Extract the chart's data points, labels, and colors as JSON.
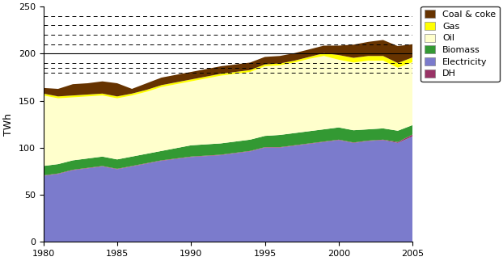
{
  "years": [
    1980,
    1981,
    1982,
    1983,
    1984,
    1985,
    1986,
    1987,
    1988,
    1989,
    1990,
    1991,
    1992,
    1993,
    1994,
    1995,
    1996,
    1997,
    1998,
    1999,
    2000,
    2001,
    2002,
    2003,
    2004,
    2005
  ],
  "electricity": [
    70,
    72,
    76,
    78,
    80,
    77,
    80,
    83,
    86,
    88,
    90,
    91,
    92,
    94,
    96,
    100,
    100,
    102,
    104,
    106,
    108,
    105,
    107,
    108,
    105,
    112
  ],
  "dh": [
    0.5,
    0.5,
    0.5,
    0.5,
    0.5,
    0.5,
    0.5,
    0.5,
    0.5,
    0.5,
    0.5,
    0.5,
    0.5,
    0.5,
    0.5,
    0.5,
    0.5,
    0.5,
    0.5,
    0.5,
    0.5,
    0.5,
    0.5,
    0.5,
    1.0,
    2.0
  ],
  "biomass": [
    10,
    10,
    10,
    10,
    10,
    10,
    10,
    10,
    10,
    11,
    12,
    12,
    12,
    12,
    12,
    12,
    13,
    13,
    13,
    13,
    13,
    13,
    12,
    12,
    12,
    10
  ],
  "oil": [
    75,
    70,
    67,
    66,
    65,
    65,
    65,
    66,
    68,
    68,
    68,
    70,
    72,
    72,
    72,
    74,
    74,
    75,
    77,
    78,
    72,
    72,
    73,
    72,
    67,
    67
  ],
  "gas": [
    2,
    2,
    2,
    2,
    2,
    2,
    2,
    2,
    2,
    2,
    2,
    2,
    2,
    2,
    2,
    2,
    2,
    2,
    2,
    3,
    5,
    5,
    5,
    5,
    5,
    5
  ],
  "coal": [
    6,
    8,
    12,
    12,
    13,
    14,
    5,
    7,
    8,
    8,
    8,
    8,
    8,
    8,
    8,
    8,
    8,
    8,
    8,
    8,
    10,
    14,
    15,
    17,
    18,
    14
  ],
  "colors": {
    "electricity": "#7b7bcc",
    "dh": "#993366",
    "biomass": "#339933",
    "oil": "#ffffcc",
    "gas": "#ffff00",
    "coal": "#663300"
  },
  "ylabel": "TWh",
  "ylim": [
    0,
    250
  ],
  "xlim": [
    1980,
    2005
  ],
  "yticks": [
    0,
    50,
    100,
    150,
    200,
    250
  ],
  "xticks": [
    1980,
    1985,
    1990,
    1995,
    2000,
    2005
  ],
  "legend_labels": [
    "Coal & coke",
    "Gas",
    "Oil",
    "Biomass",
    "Electricity",
    "DH"
  ],
  "dashed_lines": [
    180,
    185,
    190,
    210,
    220,
    230,
    240
  ],
  "solid_line": 200,
  "bg_color": "#ffffff"
}
